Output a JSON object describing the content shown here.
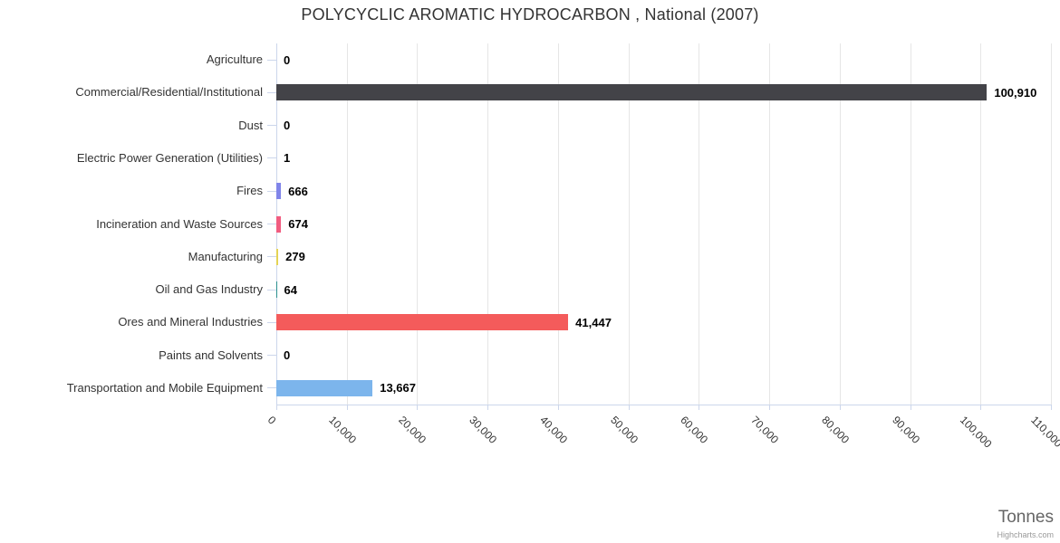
{
  "title": "POLYCYCLIC AROMATIC HYDROCARBON , National (2007)",
  "axis_title": "Tonnes",
  "credits": "Highcharts.com",
  "theme": {
    "grid_color": "#e6e6e6",
    "axis_color": "#ccd6eb",
    "title_color": "#333333",
    "label_color": "#333333",
    "data_label_color": "#000000",
    "axis_title_color": "#666666",
    "credits_color": "#999999",
    "background": "#ffffff"
  },
  "chart_data": {
    "type": "bar",
    "orientation": "horizontal",
    "title": "POLYCYCLIC AROMATIC HYDROCARBON , National (2007)",
    "xlabel": "Tonnes",
    "ylabel": "",
    "categories": [
      "Agriculture",
      "Commercial/Residential/Institutional",
      "Dust",
      "Electric Power Generation (Utilities)",
      "Fires",
      "Incineration and Waste Sources",
      "Manufacturing",
      "Oil and Gas Industry",
      "Ores and Mineral Industries",
      "Paints and Solvents",
      "Transportation and Mobile Equipment"
    ],
    "values": [
      0,
      100910,
      0,
      1,
      666,
      674,
      279,
      64,
      41447,
      0,
      13667
    ],
    "value_labels": [
      "0",
      "100,910",
      "0",
      "1",
      "666",
      "674",
      "279",
      "64",
      "41,447",
      "0",
      "13,667"
    ],
    "bar_colors": [
      "#7cb5ec",
      "#434348",
      "#90ed7d",
      "#f7a35c",
      "#8085e9",
      "#f15c80",
      "#e4d354",
      "#2b908f",
      "#f45b5b",
      "#91e8e1",
      "#7cb5ec"
    ],
    "xlim": [
      0,
      110000
    ],
    "tick_interval": 10000,
    "x_tick_labels": [
      "0",
      "10,000",
      "20,000",
      "30,000",
      "40,000",
      "50,000",
      "60,000",
      "70,000",
      "80,000",
      "90,000",
      "100,000",
      "110,000"
    ],
    "grid": true,
    "legend": false
  }
}
